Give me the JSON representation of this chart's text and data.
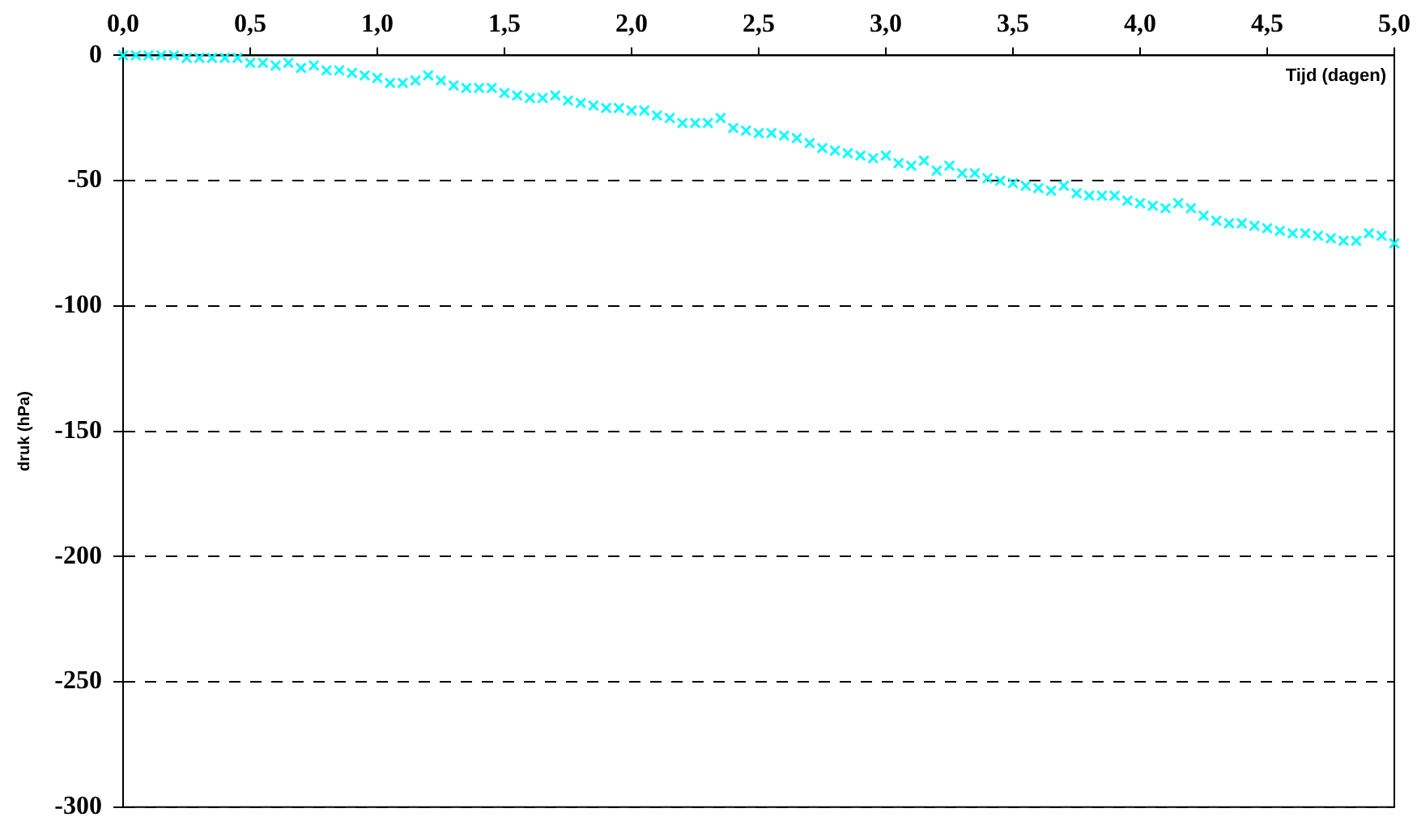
{
  "chart_data": {
    "type": "scatter",
    "xlabel": "Tijd (dagen)",
    "ylabel": "druk (hPa)",
    "color": "#00ffff",
    "marker": "cross",
    "grid": "y",
    "x": [
      0,
      0.05,
      0.1,
      0.15,
      0.2,
      0.25,
      0.3,
      0.35,
      0.4,
      0.45,
      0.5,
      0.55,
      0.6,
      0.65,
      0.7,
      0.75,
      0.8,
      0.85,
      0.9,
      0.95,
      1,
      1.05,
      1.1,
      1.15,
      1.2,
      1.25,
      1.3,
      1.35,
      1.4,
      1.45,
      1.5,
      1.55,
      1.6,
      1.65,
      1.7,
      1.75,
      1.8,
      1.85,
      1.9,
      1.95,
      2,
      2.05,
      2.1,
      2.15,
      2.2,
      2.25,
      2.3,
      2.35,
      2.4,
      2.45,
      2.5,
      2.55,
      2.6,
      2.65,
      2.7,
      2.75,
      2.8,
      2.85,
      2.9,
      2.95,
      3,
      3.05,
      3.1,
      3.15,
      3.2,
      3.25,
      3.3,
      3.35,
      3.4,
      3.45,
      3.5,
      3.55,
      3.6,
      3.65,
      3.7,
      3.75,
      3.8,
      3.85,
      3.9,
      3.95,
      4,
      4.05,
      4.1,
      4.15,
      4.2,
      4.25,
      4.3,
      4.35,
      4.4,
      4.45,
      4.5,
      4.55,
      4.6,
      4.65,
      4.7,
      4.75,
      4.8,
      4.85,
      4.9,
      4.95,
      5
    ],
    "values": [
      0,
      0,
      0,
      0,
      0,
      -1,
      -1,
      -1,
      -1,
      -1,
      -3,
      -3,
      -4,
      -3,
      -5,
      -4,
      -6,
      -6,
      -7,
      -8,
      -9,
      -11,
      -11,
      -10,
      -8,
      -10,
      -12,
      -13,
      -13,
      -13,
      -15,
      -16,
      -17,
      -17,
      -16,
      -18,
      -19,
      -20,
      -21,
      -21,
      -22,
      -22,
      -24,
      -25,
      -27,
      -27,
      -27,
      -25,
      -29,
      -30,
      -31,
      -31,
      -32,
      -33,
      -35,
      -37,
      -38,
      -39,
      -40,
      -41,
      -40,
      -43,
      -44,
      -42,
      -46,
      -44,
      -47,
      -47,
      -49,
      -50,
      -51,
      -52,
      -53,
      -54,
      -52,
      -55,
      -56,
      -56,
      -56,
      -58,
      -59,
      -60,
      -61,
      -59,
      -61,
      -64,
      -66,
      -67,
      -67,
      -68,
      -69,
      -70,
      -71,
      -71,
      -72,
      -73,
      -74,
      -74,
      -71,
      -72,
      -75
    ],
    "xlim": [
      0,
      5
    ],
    "ylim": [
      -300,
      0
    ],
    "xticks": [
      {
        "value": 0,
        "label": "0,0"
      },
      {
        "value": 0.5,
        "label": "0,5"
      },
      {
        "value": 1,
        "label": "1,0"
      },
      {
        "value": 1.5,
        "label": "1,5"
      },
      {
        "value": 2,
        "label": "2,0"
      },
      {
        "value": 2.5,
        "label": "2,5"
      },
      {
        "value": 3,
        "label": "3,0"
      },
      {
        "value": 3.5,
        "label": "3,5"
      },
      {
        "value": 4,
        "label": "4,0"
      },
      {
        "value": 4.5,
        "label": "4,5"
      },
      {
        "value": 5,
        "label": "5,0"
      }
    ],
    "yticks": [
      -300,
      -250,
      -200,
      -150,
      -100,
      -50,
      0
    ]
  }
}
